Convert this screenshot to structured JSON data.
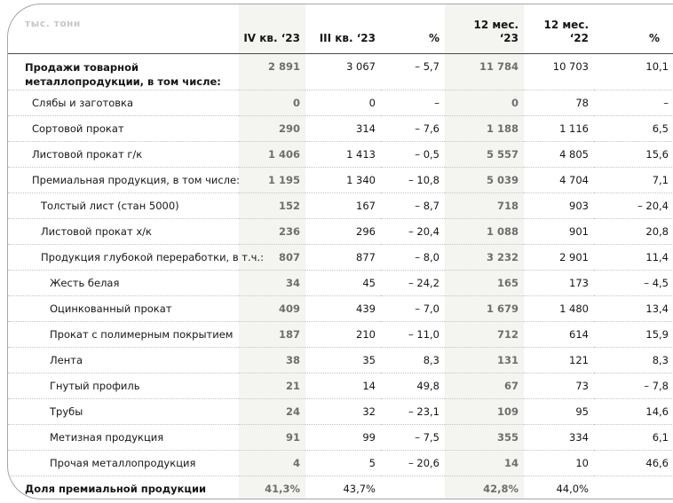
{
  "chart_data": {
    "type": "table",
    "unit_label": "тыс. тонн",
    "columns": [
      "IV кв. ‘23",
      "III кв. ‘23",
      "%",
      "12 мес.\n‘23",
      "12 мес.\n‘22",
      "%"
    ],
    "rows": [
      {
        "label": "Продажи товарной металлопродукции, в том числе:",
        "indent": 0,
        "bold": true,
        "values": [
          "2 891",
          "3 067",
          "– 5,7",
          "11 784",
          "10 703",
          "10,1"
        ]
      },
      {
        "label": "Слябы и заготовка",
        "indent": 1,
        "bold": false,
        "values": [
          "0",
          "0",
          "–",
          "0",
          "78",
          "–"
        ]
      },
      {
        "label": "Сортовой прокат",
        "indent": 1,
        "bold": false,
        "values": [
          "290",
          "314",
          "– 7,6",
          "1 188",
          "1 116",
          "6,5"
        ]
      },
      {
        "label": "Листовой прокат г/к",
        "indent": 1,
        "bold": false,
        "values": [
          "1 406",
          "1 413",
          "– 0,5",
          "5 557",
          "4 805",
          "15,6"
        ]
      },
      {
        "label": "Премиальная продукция, в том числе:",
        "indent": 1,
        "bold": false,
        "values": [
          "1 195",
          "1 340",
          "– 10,8",
          "5 039",
          "4 704",
          "7,1"
        ]
      },
      {
        "label": "Толстый лист (стан 5000)",
        "indent": 2,
        "bold": false,
        "values": [
          "152",
          "167",
          "– 8,7",
          "718",
          "903",
          "– 20,4"
        ]
      },
      {
        "label": "Листовой прокат х/к",
        "indent": 2,
        "bold": false,
        "values": [
          "236",
          "296",
          "– 20,4",
          "1 088",
          "901",
          "20,8"
        ]
      },
      {
        "label": "Продукция глубокой переработки, в т.ч.:",
        "indent": 2,
        "bold": false,
        "values": [
          "807",
          "877",
          "– 8,0",
          "3 232",
          "2 901",
          "11,4"
        ]
      },
      {
        "label": "Жесть белая",
        "indent": 3,
        "bold": false,
        "values": [
          "34",
          "45",
          "– 24,2",
          "165",
          "173",
          "– 4,5"
        ]
      },
      {
        "label": "Оцинкованный прокат",
        "indent": 3,
        "bold": false,
        "values": [
          "409",
          "439",
          "– 7,0",
          "1 679",
          "1 480",
          "13,4"
        ]
      },
      {
        "label": "Прокат с полимерным покрытием",
        "indent": 3,
        "bold": false,
        "values": [
          "187",
          "210",
          "– 11,0",
          "712",
          "614",
          "15,9"
        ]
      },
      {
        "label": "Лента",
        "indent": 3,
        "bold": false,
        "values": [
          "38",
          "35",
          "8,3",
          "131",
          "121",
          "8,3"
        ]
      },
      {
        "label": "Гнутый профиль",
        "indent": 3,
        "bold": false,
        "values": [
          "21",
          "14",
          "49,8",
          "67",
          "73",
          "– 7,8"
        ]
      },
      {
        "label": "Трубы",
        "indent": 3,
        "bold": false,
        "values": [
          "24",
          "32",
          "– 23,1",
          "109",
          "95",
          "14,6"
        ]
      },
      {
        "label": "Метизная продукция",
        "indent": 3,
        "bold": false,
        "values": [
          "91",
          "99",
          "– 7,5",
          "355",
          "334",
          "6,1"
        ]
      },
      {
        "label": "Прочая металлопродукция",
        "indent": 3,
        "bold": false,
        "values": [
          "4",
          "5",
          "– 20,6",
          "14",
          "10",
          "46,6"
        ]
      },
      {
        "label": "Доля премиальной продукции",
        "indent": 0,
        "bold": true,
        "values": [
          "41,3%",
          "43,7%",
          "",
          "42,8%",
          "44,0%",
          ""
        ]
      }
    ],
    "shaded_column_indices": [
      0,
      3
    ],
    "colors": {
      "column_shade": "#f4f4f0",
      "shaded_value_text": "#6e6e6e",
      "header_rule": "#4a4a4a",
      "bottom_rule": "#3b3b3b",
      "frame_border": "#a6a6a6",
      "unit_label_text": "#c6c6c6",
      "row_separator": "#c4c4c4"
    }
  }
}
